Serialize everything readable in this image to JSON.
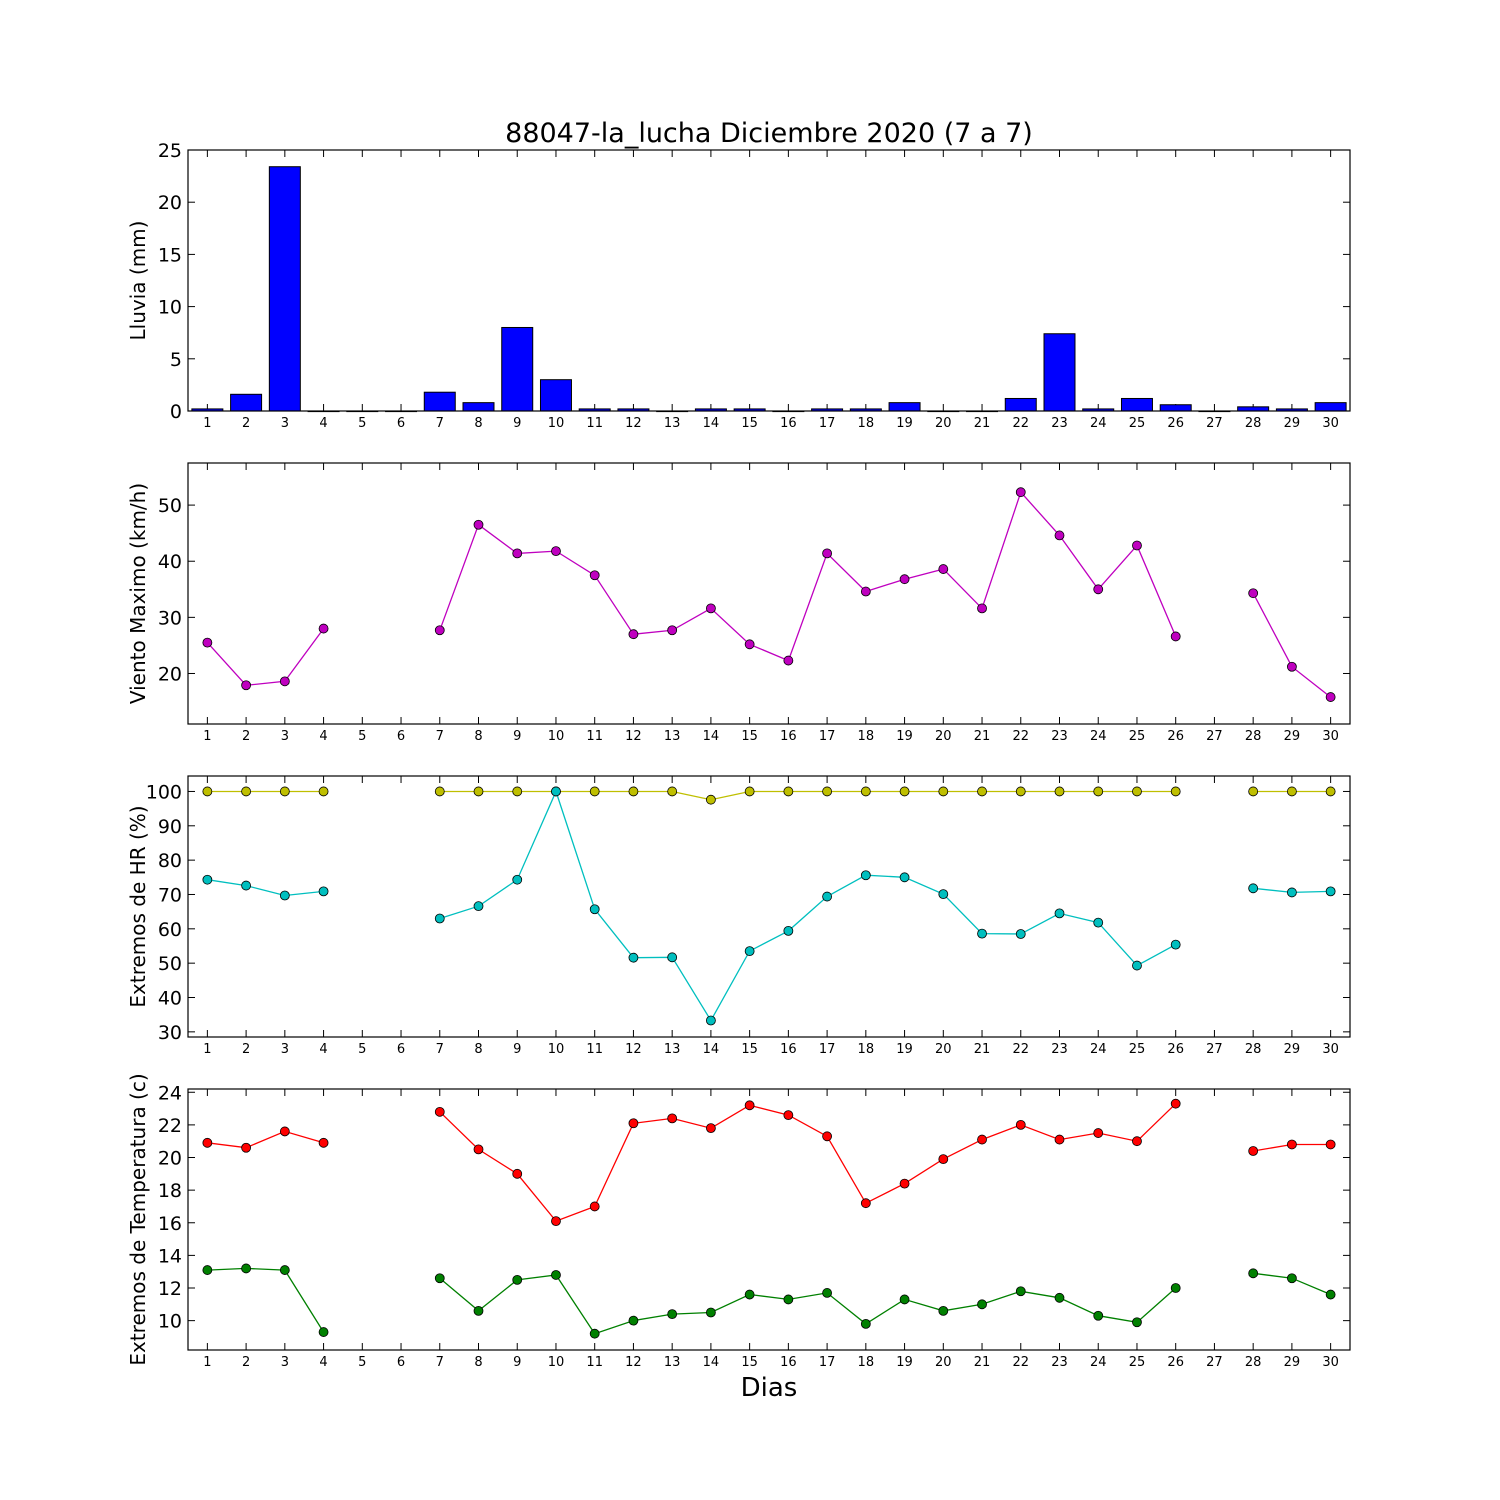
{
  "title": "88047-la_lucha Diciembre 2020  (7 a 7)",
  "xlabel": "Dias",
  "colors": {
    "rain": "#0000ff",
    "wind": "#bf00bf",
    "hr_max": "#bfbf00",
    "hr_min": "#00bfbf",
    "temp_max": "#ff0000",
    "temp_min": "#008000"
  },
  "chart_data": [
    {
      "type": "bar",
      "ylabel": "Lluvia (mm)",
      "ylim": [
        0,
        25
      ],
      "yticks": [
        0,
        5,
        10,
        15,
        20,
        25
      ],
      "x": [
        1,
        2,
        3,
        4,
        5,
        6,
        7,
        8,
        9,
        10,
        11,
        12,
        13,
        14,
        15,
        16,
        17,
        18,
        19,
        20,
        21,
        22,
        23,
        24,
        25,
        26,
        27,
        28,
        29,
        30
      ],
      "xticks": [
        1,
        2,
        3,
        4,
        5,
        6,
        7,
        8,
        9,
        10,
        11,
        12,
        13,
        14,
        15,
        16,
        17,
        18,
        19,
        20,
        21,
        22,
        23,
        24,
        25,
        26,
        27,
        28,
        29,
        30
      ],
      "values": [
        0.2,
        1.6,
        23.4,
        0,
        0,
        0,
        1.8,
        0.8,
        8.0,
        3.0,
        0.2,
        0.2,
        0,
        0.2,
        0.2,
        0,
        0.2,
        0.2,
        0.8,
        0,
        0,
        1.2,
        7.4,
        0.2,
        1.2,
        0.6,
        0,
        0.4,
        0.2,
        0.8
      ]
    },
    {
      "type": "line",
      "ylabel": "Viento Maximo (km/h)",
      "ylim": [
        11,
        57.5
      ],
      "yticks": [
        20,
        30,
        40,
        50
      ],
      "x": [
        1,
        2,
        3,
        4,
        5,
        6,
        7,
        8,
        9,
        10,
        11,
        12,
        13,
        14,
        15,
        16,
        17,
        18,
        19,
        20,
        21,
        22,
        23,
        24,
        25,
        26,
        27,
        28,
        29,
        30
      ],
      "xticks": [
        1,
        2,
        3,
        4,
        5,
        6,
        7,
        8,
        9,
        10,
        11,
        12,
        13,
        14,
        15,
        16,
        17,
        18,
        19,
        20,
        21,
        22,
        23,
        24,
        25,
        26,
        27,
        28,
        29,
        30
      ],
      "series": [
        {
          "values": [
            25.5,
            17.9,
            18.6,
            28.0,
            null,
            null,
            27.7,
            46.5,
            41.4,
            41.8,
            37.5,
            27.0,
            27.7,
            31.6,
            25.2,
            22.3,
            41.4,
            34.6,
            36.8,
            38.6,
            31.6,
            52.3,
            44.6,
            35.0,
            42.8,
            26.6,
            null,
            34.3,
            21.2,
            15.8
          ]
        }
      ]
    },
    {
      "type": "line",
      "ylabel": "Extremos de HR (%)",
      "ylim": [
        28.5,
        104.5
      ],
      "yticks": [
        30,
        40,
        50,
        60,
        70,
        80,
        90,
        100
      ],
      "x": [
        1,
        2,
        3,
        4,
        5,
        6,
        7,
        8,
        9,
        10,
        11,
        12,
        13,
        14,
        15,
        16,
        17,
        18,
        19,
        20,
        21,
        22,
        23,
        24,
        25,
        26,
        27,
        28,
        29,
        30
      ],
      "xticks": [
        1,
        2,
        3,
        4,
        5,
        6,
        7,
        8,
        9,
        10,
        11,
        12,
        13,
        14,
        15,
        16,
        17,
        18,
        19,
        20,
        21,
        22,
        23,
        24,
        25,
        26,
        27,
        28,
        29,
        30
      ],
      "series": [
        {
          "values": [
            100,
            100,
            100,
            100,
            null,
            null,
            100,
            100,
            100,
            100,
            100,
            100,
            100,
            97.6,
            100,
            100,
            100,
            100,
            100,
            100,
            100,
            100,
            100,
            100,
            100,
            100,
            null,
            100,
            100,
            100
          ]
        },
        {
          "values": [
            74.3,
            72.6,
            69.7,
            70.9,
            null,
            null,
            63.0,
            66.6,
            74.3,
            100,
            65.7,
            51.6,
            51.7,
            33.3,
            53.5,
            59.4,
            69.4,
            75.6,
            75.0,
            70.1,
            58.6,
            58.5,
            64.5,
            61.8,
            49.3,
            55.4,
            null,
            71.8,
            70.6,
            70.9
          ]
        }
      ]
    },
    {
      "type": "line",
      "ylabel": "Extremos de Temperatura (c)",
      "ylim": [
        8.2,
        24.2
      ],
      "yticks": [
        10,
        12,
        14,
        16,
        18,
        20,
        22,
        24
      ],
      "x": [
        1,
        2,
        3,
        4,
        5,
        6,
        7,
        8,
        9,
        10,
        11,
        12,
        13,
        14,
        15,
        16,
        17,
        18,
        19,
        20,
        21,
        22,
        23,
        24,
        25,
        26,
        27,
        28,
        29,
        30
      ],
      "xticks": [
        1,
        2,
        3,
        4,
        5,
        6,
        7,
        8,
        9,
        10,
        11,
        12,
        13,
        14,
        15,
        16,
        17,
        18,
        19,
        20,
        21,
        22,
        23,
        24,
        25,
        26,
        27,
        28,
        29,
        30
      ],
      "series": [
        {
          "values": [
            20.9,
            20.6,
            21.6,
            20.9,
            null,
            null,
            22.8,
            20.5,
            19.0,
            16.1,
            17.0,
            22.1,
            22.4,
            21.8,
            23.2,
            22.6,
            21.3,
            17.2,
            18.4,
            19.9,
            21.1,
            22.0,
            21.1,
            21.5,
            21.0,
            23.3,
            null,
            20.4,
            20.8,
            20.8
          ]
        },
        {
          "values": [
            13.1,
            13.2,
            13.1,
            9.3,
            null,
            null,
            12.6,
            10.6,
            12.5,
            12.8,
            9.2,
            10.0,
            10.4,
            10.5,
            11.6,
            11.3,
            11.7,
            9.8,
            11.3,
            10.6,
            11.0,
            11.8,
            11.4,
            10.3,
            9.9,
            12.0,
            null,
            12.9,
            12.6,
            11.6
          ]
        }
      ]
    }
  ]
}
